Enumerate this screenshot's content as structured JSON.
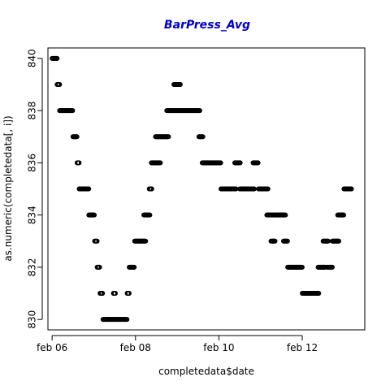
{
  "chart_data": {
    "type": "scatter",
    "title": "BarPress_Avg",
    "title_color": "#0000cc",
    "xlabel": "completedata$date",
    "ylabel": "as.numeric(completedata[, i])",
    "x_ticks": [
      "feb 06",
      "feb 08",
      "feb 10",
      "feb 12"
    ],
    "x_tick_days": [
      6,
      8,
      10,
      12
    ],
    "xlim_days": [
      5.9,
      13.5
    ],
    "y_ticks": [
      830,
      832,
      834,
      836,
      838,
      840
    ],
    "ylim": [
      829.6,
      840.4
    ],
    "marker": "open-circle",
    "marker_color": "#000000",
    "series": [
      {
        "segments": [
          {
            "x0": 6.0,
            "x1": 6.12,
            "y": 840
          },
          {
            "x0": 6.12,
            "x1": 6.18,
            "y": 839
          },
          {
            "x0": 6.18,
            "x1": 6.5,
            "y": 838
          },
          {
            "x0": 6.5,
            "x1": 6.6,
            "y": 837
          },
          {
            "x0": 6.6,
            "x1": 6.65,
            "y": 836
          },
          {
            "x0": 6.65,
            "x1": 6.88,
            "y": 835
          },
          {
            "x0": 6.88,
            "x1": 7.02,
            "y": 834
          },
          {
            "x0": 7.02,
            "x1": 7.08,
            "y": 833
          },
          {
            "x0": 7.08,
            "x1": 7.15,
            "y": 832
          },
          {
            "x0": 7.15,
            "x1": 7.22,
            "y": 831
          },
          {
            "x0": 7.22,
            "x1": 7.5,
            "y": 830
          },
          {
            "x0": 7.47,
            "x1": 7.52,
            "y": 831
          },
          {
            "x0": 7.52,
            "x1": 7.8,
            "y": 830
          },
          {
            "x0": 7.8,
            "x1": 7.85,
            "y": 831
          },
          {
            "x0": 7.85,
            "x1": 7.98,
            "y": 832
          },
          {
            "x0": 7.98,
            "x1": 8.25,
            "y": 833
          },
          {
            "x0": 8.2,
            "x1": 8.35,
            "y": 834
          },
          {
            "x0": 8.33,
            "x1": 8.4,
            "y": 835
          },
          {
            "x0": 8.38,
            "x1": 8.6,
            "y": 836
          },
          {
            "x0": 8.48,
            "x1": 8.8,
            "y": 837
          },
          {
            "x0": 8.75,
            "x1": 9.55,
            "y": 838
          },
          {
            "x0": 8.92,
            "x1": 9.08,
            "y": 839
          },
          {
            "x0": 9.52,
            "x1": 9.62,
            "y": 837
          },
          {
            "x0": 9.6,
            "x1": 10.05,
            "y": 836
          },
          {
            "x0": 10.05,
            "x1": 10.42,
            "y": 835
          },
          {
            "x0": 10.38,
            "x1": 10.52,
            "y": 836
          },
          {
            "x0": 10.5,
            "x1": 10.85,
            "y": 835
          },
          {
            "x0": 10.82,
            "x1": 10.95,
            "y": 836
          },
          {
            "x0": 10.95,
            "x1": 11.18,
            "y": 835
          },
          {
            "x0": 11.15,
            "x1": 11.3,
            "y": 834
          },
          {
            "x0": 11.25,
            "x1": 11.35,
            "y": 833
          },
          {
            "x0": 11.32,
            "x1": 11.6,
            "y": 834
          },
          {
            "x0": 11.55,
            "x1": 11.65,
            "y": 833
          },
          {
            "x0": 11.65,
            "x1": 12.0,
            "y": 832
          },
          {
            "x0": 12.0,
            "x1": 12.4,
            "y": 831
          },
          {
            "x0": 12.38,
            "x1": 12.55,
            "y": 832
          },
          {
            "x0": 12.5,
            "x1": 12.62,
            "y": 833
          },
          {
            "x0": 12.6,
            "x1": 12.72,
            "y": 832
          },
          {
            "x0": 12.72,
            "x1": 12.88,
            "y": 833
          },
          {
            "x0": 12.85,
            "x1": 13.0,
            "y": 834
          },
          {
            "x0": 13.0,
            "x1": 13.18,
            "y": 835
          }
        ]
      }
    ]
  }
}
